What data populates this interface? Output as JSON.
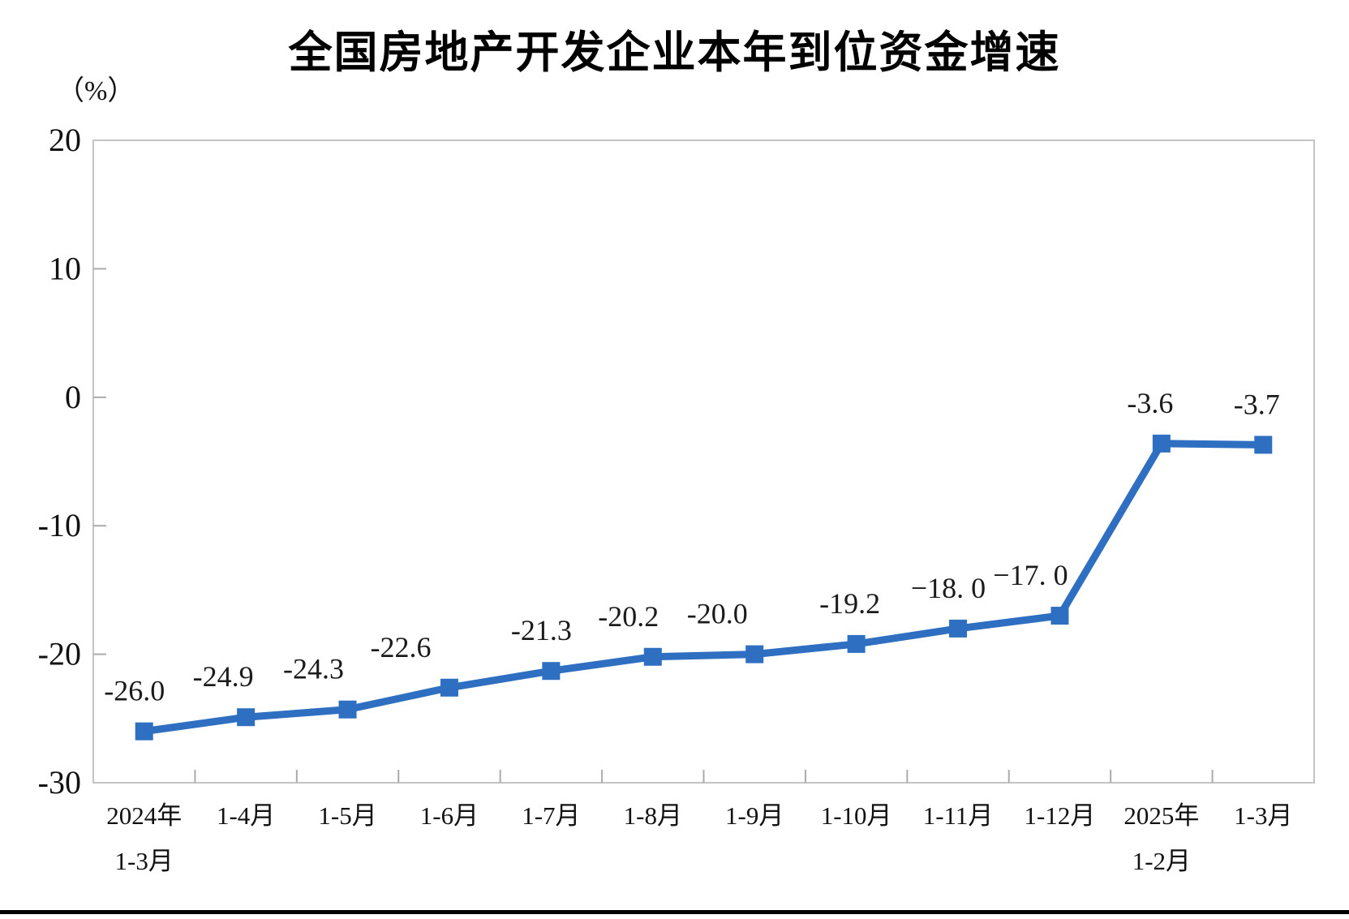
{
  "chart_data": {
    "type": "line",
    "title": "全国房地产开发企业本年到位资金增速",
    "unit_label": "（%）",
    "categories": [
      [
        "2024年",
        "1-3月"
      ],
      [
        "1-4月"
      ],
      [
        "1-5月"
      ],
      [
        "1-6月"
      ],
      [
        "1-7月"
      ],
      [
        "1-8月"
      ],
      [
        "1-9月"
      ],
      [
        "1-10月"
      ],
      [
        "1-11月"
      ],
      [
        "1-12月"
      ],
      [
        "2025年",
        "1-2月"
      ],
      [
        "1-3月"
      ]
    ],
    "values": [
      -26.0,
      -24.9,
      -24.3,
      -22.6,
      -21.3,
      -20.2,
      -20.0,
      -19.2,
      -18.0,
      -17.0,
      -3.6,
      -3.7
    ],
    "point_labels": [
      "-26.0",
      "-24.9",
      "-24.3",
      "-22.6",
      "-21.3",
      "-20.2",
      "-20.0",
      "-19.2",
      "−18. 0",
      "−17. 0",
      "-3.6",
      "-3.7"
    ],
    "y_ticks": [
      20,
      10,
      0,
      -10,
      -20,
      -30
    ],
    "ylim": [
      -30,
      20
    ],
    "xlabel": "",
    "ylabel": "（%）",
    "grid": false,
    "legend": null,
    "line_color": "#2e6fc2",
    "marker_style": "square",
    "label_color": "#1b1b1b",
    "axis_color": "#c4c4c4",
    "tick_color": "#ababab"
  }
}
